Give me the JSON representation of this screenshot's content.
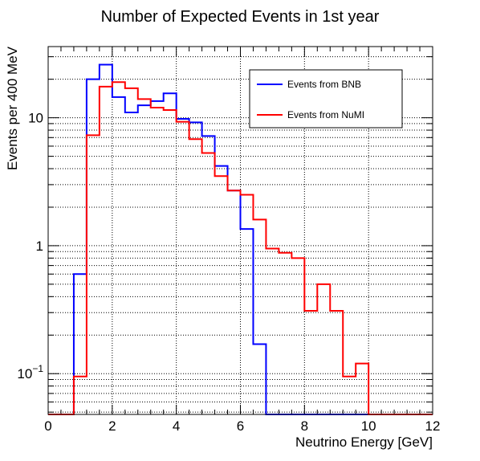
{
  "chart_data": {
    "type": "line",
    "title": "Number of Expected Events in 1st year",
    "xlabel": "Neutrino Energy [GeV]",
    "ylabel": "Events per 400 MeV",
    "xlim": [
      0,
      12
    ],
    "ylim": [
      0.048,
      36
    ],
    "log_y": true,
    "grid": true,
    "legend_position": "top-right",
    "x_ticks": [
      {
        "value": 0,
        "label": "0"
      },
      {
        "value": 2,
        "label": "2"
      },
      {
        "value": 4,
        "label": "4"
      },
      {
        "value": 6,
        "label": "6"
      },
      {
        "value": 8,
        "label": "8"
      },
      {
        "value": 10,
        "label": "10"
      },
      {
        "value": 12,
        "label": "12"
      }
    ],
    "y_ticks": [
      {
        "value": 0.1,
        "base": "10",
        "exp": "−1"
      },
      {
        "value": 1,
        "label": "1"
      },
      {
        "value": 10,
        "label": "10"
      }
    ],
    "bin_edges": [
      0,
      0.4,
      0.8,
      1.2,
      1.6,
      2.0,
      2.4,
      2.8,
      3.2,
      3.6,
      4.0,
      4.4,
      4.8,
      5.2,
      5.6,
      6.0,
      6.4,
      6.8,
      7.2,
      7.6,
      8.0,
      8.4,
      8.8,
      9.2,
      9.6,
      10.0,
      10.4,
      10.8,
      11.2,
      11.6,
      12.0
    ],
    "series": [
      {
        "name": "Events from BNB",
        "color": "#0000ff",
        "values": [
          0,
          0,
          0.6,
          20,
          26,
          14.5,
          11,
          12.5,
          13.5,
          15.5,
          9.8,
          9.2,
          7.2,
          4.2,
          2.7,
          1.35,
          0.17,
          0,
          0,
          0,
          0,
          0,
          0,
          0,
          0,
          0,
          0,
          0,
          0,
          0
        ]
      },
      {
        "name": "Events from NuMI",
        "color": "#ff0000",
        "values": [
          0,
          0,
          0.095,
          7.3,
          17.5,
          19,
          17,
          14,
          12,
          11.5,
          9.3,
          6.8,
          5.3,
          3.5,
          2.7,
          2.5,
          1.6,
          0.95,
          0.88,
          0.8,
          0.31,
          0.5,
          0.31,
          0.095,
          0.12,
          0,
          0,
          0,
          0,
          0
        ]
      }
    ]
  },
  "colors": {
    "background": "#ffffff",
    "axis": "#000000",
    "grid": "#000000"
  }
}
